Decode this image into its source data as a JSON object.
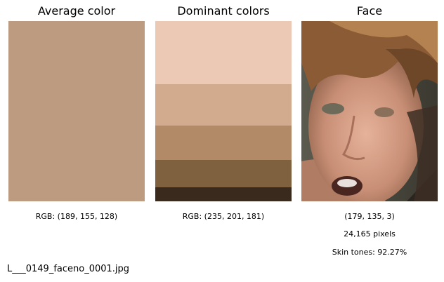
{
  "panels": {
    "average": {
      "title": "Average color",
      "color": "#bd9b80",
      "caption": "RGB: (189, 155, 128)"
    },
    "dominant": {
      "title": "Dominant colors",
      "caption": "RGB: (235, 201, 181)",
      "swatches": [
        {
          "color": "#ebc9b5",
          "share": 0.35
        },
        {
          "color": "#d2aa8e",
          "share": 0.23
        },
        {
          "color": "#b28a68",
          "share": 0.19
        },
        {
          "color": "#7f603f",
          "share": 0.15
        },
        {
          "color": "#3a2a1d",
          "share": 0.08
        }
      ]
    },
    "face": {
      "title": "Face",
      "captions": [
        "(179, 135, 3)",
        "24,165 pixels",
        "Skin tones: 92.27%"
      ]
    }
  },
  "filename": "L___0149_faceno_0001.jpg"
}
